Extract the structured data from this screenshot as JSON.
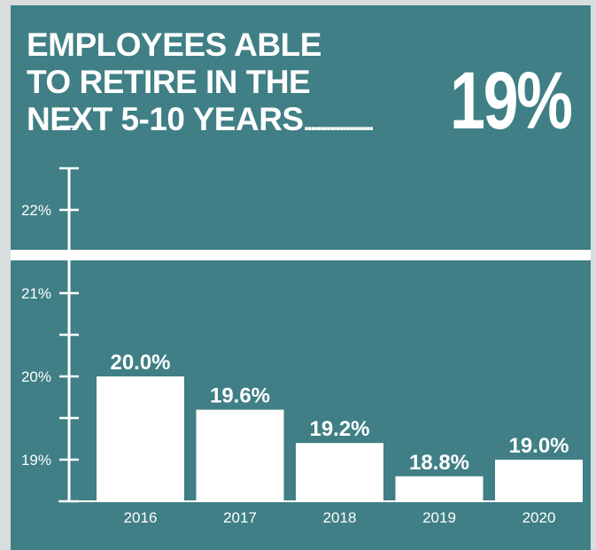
{
  "header": {
    "title_lines": [
      "EMPLOYEES ABLE",
      "TO RETIRE IN THE",
      "NEXT 5-10 YEARS"
    ],
    "dots": ".....................",
    "big_stat": "19%"
  },
  "chart_data": {
    "type": "bar",
    "categories": [
      "2016",
      "2017",
      "2018",
      "2019",
      "2020"
    ],
    "values": [
      20.0,
      19.6,
      19.2,
      18.8,
      19.0
    ],
    "data_labels": [
      "20.0%",
      "19.6%",
      "19.2%",
      "18.8%",
      "19.0%"
    ],
    "y_ticks": [
      19,
      20,
      21,
      22
    ],
    "y_tick_labels": [
      "19%",
      "20%",
      "21%",
      "22%"
    ],
    "ylim": [
      18.5,
      23.0
    ],
    "colors": {
      "background": "#3f7f85",
      "bar": "#ffffff",
      "text": "#ffffff"
    }
  }
}
